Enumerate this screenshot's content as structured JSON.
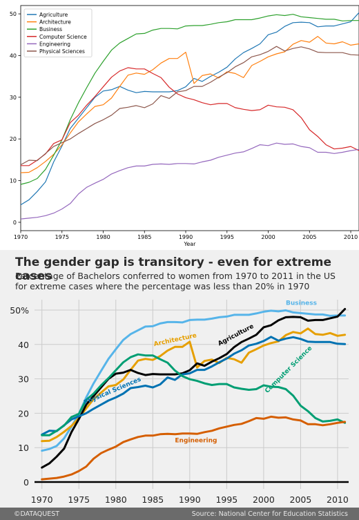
{
  "chart_data": [
    {
      "type": "line",
      "title": "",
      "xlabel": "Year",
      "ylabel": "",
      "xlim": [
        1970,
        2011
      ],
      "ylim": [
        -2,
        52
      ],
      "xticks": [
        1970,
        1975,
        1980,
        1985,
        1990,
        1995,
        2000,
        2005,
        2010
      ],
      "yticks": [
        0,
        10,
        20,
        30,
        40,
        50
      ],
      "grid": false,
      "legend_position": "top-left",
      "x": [
        1970,
        1971,
        1972,
        1973,
        1974,
        1975,
        1976,
        1977,
        1978,
        1979,
        1980,
        1981,
        1982,
        1983,
        1984,
        1985,
        1986,
        1987,
        1988,
        1989,
        1990,
        1991,
        1992,
        1993,
        1994,
        1995,
        1996,
        1997,
        1998,
        1999,
        2000,
        2001,
        2002,
        2003,
        2004,
        2005,
        2006,
        2007,
        2008,
        2009,
        2010,
        2011
      ],
      "series": [
        {
          "name": "Agriculture",
          "color": "#1f77b4",
          "values": [
            4.2,
            5.4,
            7.4,
            9.7,
            14.5,
            18.3,
            22.5,
            25.0,
            27.5,
            30.0,
            31.5,
            31.8,
            32.6,
            31.7,
            31.1,
            31.4,
            31.3,
            31.3,
            31.3,
            31.6,
            32.5,
            34.5,
            33.8,
            35.0,
            36.0,
            37.2,
            39.2,
            40.7,
            41.7,
            42.8,
            45.0,
            45.6,
            47.0,
            47.9,
            48.0,
            47.9,
            46.9,
            47.1,
            47.1,
            47.6,
            48.1,
            50.3
          ]
        },
        {
          "name": "Architecture",
          "color": "#ff7f0e",
          "values": [
            11.9,
            12.0,
            13.1,
            14.6,
            16.3,
            18.6,
            21.4,
            24.1,
            26.0,
            27.8,
            28.2,
            29.8,
            32.6,
            35.3,
            35.8,
            35.5,
            36.6,
            38.2,
            39.3,
            39.3,
            40.8,
            33.3,
            35.2,
            35.6,
            34.6,
            36.1,
            35.7,
            34.7,
            37.6,
            38.6,
            39.7,
            40.4,
            40.9,
            42.7,
            43.6,
            43.2,
            44.6,
            43.0,
            42.8,
            43.3,
            42.5,
            42.8
          ]
        },
        {
          "name": "Business",
          "color": "#2ca02c",
          "values": [
            9.1,
            9.6,
            10.5,
            12.7,
            16.1,
            19.8,
            24.6,
            28.7,
            32.3,
            35.8,
            38.6,
            41.3,
            43.0,
            44.1,
            45.2,
            45.3,
            46.1,
            46.5,
            46.5,
            46.4,
            47.1,
            47.2,
            47.2,
            47.5,
            47.9,
            48.1,
            48.6,
            48.6,
            48.6,
            49.0,
            49.5,
            49.8,
            49.6,
            49.9,
            49.3,
            49.1,
            48.9,
            48.7,
            48.7,
            48.3,
            48.4,
            48.4
          ]
        },
        {
          "name": "Computer Science",
          "color": "#d62728",
          "values": [
            13.6,
            13.6,
            14.9,
            16.4,
            18.9,
            19.8,
            23.9,
            25.7,
            28.1,
            30.2,
            32.5,
            34.8,
            36.3,
            37.1,
            36.8,
            36.8,
            35.7,
            34.7,
            32.4,
            30.8,
            29.9,
            29.4,
            28.7,
            28.2,
            28.5,
            28.5,
            27.5,
            27.1,
            26.8,
            27.0,
            28.1,
            27.7,
            27.6,
            27.0,
            25.1,
            22.2,
            20.6,
            18.6,
            17.6,
            17.8,
            18.2,
            17.2
          ]
        },
        {
          "name": "Engineering",
          "color": "#9467bd",
          "values": [
            0.8,
            1.0,
            1.2,
            1.6,
            2.2,
            3.2,
            4.5,
            6.8,
            8.4,
            9.4,
            10.3,
            11.6,
            12.4,
            13.1,
            13.5,
            13.5,
            13.9,
            14.0,
            13.9,
            14.1,
            14.1,
            14.0,
            14.5,
            14.9,
            15.6,
            16.1,
            16.6,
            16.9,
            17.7,
            18.6,
            18.4,
            19.0,
            18.7,
            18.8,
            18.2,
            17.9,
            16.8,
            16.8,
            16.5,
            16.8,
            17.2,
            17.5
          ]
        },
        {
          "name": "Physical Sciences",
          "color": "#8c564b",
          "values": [
            13.8,
            14.9,
            14.8,
            16.5,
            18.2,
            19.1,
            20.0,
            21.3,
            22.5,
            23.7,
            24.6,
            25.7,
            27.3,
            27.6,
            28.0,
            27.5,
            28.4,
            30.4,
            29.7,
            31.3,
            31.6,
            32.6,
            32.6,
            33.6,
            34.8,
            35.9,
            37.3,
            38.3,
            39.7,
            40.2,
            41.0,
            42.2,
            41.1,
            41.7,
            42.1,
            41.6,
            40.8,
            40.7,
            40.7,
            40.7,
            40.2,
            40.1
          ]
        }
      ]
    },
    {
      "type": "line",
      "title": "The gender gap is transitory - even for extreme cases",
      "subtitle": "Percentage of Bachelors conferred to women from 1970 to 2011 in the US for extreme cases where the percentage was less than 20% in 1970",
      "xlabel": "",
      "ylabel": "",
      "xlim": [
        1969,
        2011.5
      ],
      "ylim": [
        -2,
        53
      ],
      "xticks": [
        1970,
        1975,
        1980,
        1985,
        1990,
        1995,
        2000,
        2005,
        2010
      ],
      "yticks": [
        0,
        10,
        20,
        30,
        40,
        50
      ],
      "ytick_labels": [
        "0",
        "10",
        "20",
        "30",
        "40",
        "50%"
      ],
      "grid": true,
      "background": "#f0f0f0",
      "x": [
        1970,
        1971,
        1972,
        1973,
        1974,
        1975,
        1976,
        1977,
        1978,
        1979,
        1980,
        1981,
        1982,
        1983,
        1984,
        1985,
        1986,
        1987,
        1988,
        1989,
        1990,
        1991,
        1992,
        1993,
        1994,
        1995,
        1996,
        1997,
        1998,
        1999,
        2000,
        2001,
        2002,
        2003,
        2004,
        2005,
        2006,
        2007,
        2008,
        2009,
        2010,
        2011
      ],
      "series": [
        {
          "name": "Business",
          "color": "#56b4e9",
          "values": [
            9.1,
            9.6,
            10.5,
            12.7,
            16.1,
            19.8,
            24.6,
            28.7,
            32.3,
            35.8,
            38.6,
            41.3,
            43.0,
            44.1,
            45.2,
            45.3,
            46.1,
            46.5,
            46.5,
            46.4,
            47.1,
            47.2,
            47.2,
            47.5,
            47.9,
            48.1,
            48.6,
            48.6,
            48.6,
            49.0,
            49.5,
            49.8,
            49.6,
            49.9,
            49.3,
            49.1,
            48.9,
            48.7,
            48.7,
            48.3,
            48.4,
            48.4
          ]
        },
        {
          "name": "Architecture",
          "color": "#e69f00",
          "values": [
            11.9,
            12.0,
            13.1,
            14.6,
            16.3,
            18.6,
            21.4,
            24.1,
            26.0,
            27.8,
            28.2,
            29.8,
            32.6,
            35.3,
            35.8,
            35.5,
            36.6,
            38.2,
            39.3,
            39.3,
            40.8,
            33.3,
            35.2,
            35.6,
            34.6,
            36.1,
            35.7,
            34.7,
            37.6,
            38.6,
            39.7,
            40.4,
            40.9,
            42.7,
            43.6,
            43.2,
            44.6,
            43.0,
            42.8,
            43.3,
            42.5,
            42.8
          ]
        },
        {
          "name": "Agriculture",
          "color": "#000000",
          "values": [
            4.2,
            5.4,
            7.4,
            9.7,
            14.5,
            18.3,
            22.5,
            25.0,
            27.5,
            30.0,
            31.5,
            31.8,
            32.6,
            31.7,
            31.1,
            31.4,
            31.3,
            31.3,
            31.3,
            31.6,
            32.5,
            34.5,
            33.8,
            35.0,
            36.0,
            37.2,
            39.2,
            40.7,
            41.7,
            42.8,
            45.0,
            45.6,
            47.0,
            47.9,
            48.0,
            47.9,
            46.9,
            47.1,
            47.1,
            47.6,
            48.1,
            50.3
          ]
        },
        {
          "name": "Physical Sciences",
          "color": "#0072b2",
          "values": [
            13.8,
            14.9,
            14.8,
            16.5,
            18.2,
            19.1,
            20.0,
            21.3,
            22.5,
            23.7,
            24.6,
            25.7,
            27.3,
            27.6,
            28.0,
            27.5,
            28.4,
            30.4,
            29.7,
            31.3,
            31.6,
            32.6,
            32.6,
            33.6,
            34.8,
            35.9,
            37.3,
            38.3,
            39.7,
            40.2,
            41.0,
            42.2,
            41.1,
            41.7,
            42.1,
            41.6,
            40.8,
            40.7,
            40.7,
            40.7,
            40.2,
            40.1
          ]
        },
        {
          "name": "Computer Science",
          "color": "#009e73",
          "values": [
            13.6,
            13.6,
            14.9,
            16.4,
            18.9,
            19.8,
            23.9,
            25.7,
            28.1,
            30.2,
            32.5,
            34.8,
            36.3,
            37.1,
            36.8,
            36.8,
            35.7,
            34.7,
            32.4,
            30.8,
            29.9,
            29.4,
            28.7,
            28.2,
            28.5,
            28.5,
            27.5,
            27.1,
            26.8,
            27.0,
            28.1,
            27.7,
            27.6,
            27.0,
            25.1,
            22.2,
            20.6,
            18.6,
            17.6,
            17.8,
            18.2,
            17.2
          ]
        },
        {
          "name": "Engineering",
          "color": "#d55e00",
          "values": [
            0.8,
            1.0,
            1.2,
            1.6,
            2.2,
            3.2,
            4.5,
            6.8,
            8.4,
            9.4,
            10.3,
            11.6,
            12.4,
            13.1,
            13.5,
            13.5,
            13.9,
            14.0,
            13.9,
            14.1,
            14.1,
            14.0,
            14.5,
            14.9,
            15.6,
            16.1,
            16.6,
            16.9,
            17.7,
            18.6,
            18.4,
            19.0,
            18.7,
            18.8,
            18.2,
            17.9,
            16.8,
            16.8,
            16.5,
            16.8,
            17.2,
            17.5
          ]
        }
      ],
      "annotations": [
        {
          "text": "Business",
          "color": "#56b4e9",
          "x": 2003.0,
          "y": 51.5,
          "rotation": 0
        },
        {
          "text": "Architecture",
          "color": "#e69f00",
          "x": 1985.2,
          "y": 39.5,
          "rotation": -12
        },
        {
          "text": "Agriculture",
          "color": "#000000",
          "x": 1994.0,
          "y": 39.6,
          "rotation": -28
        },
        {
          "text": "Computer Science",
          "color": "#009e73",
          "x": 2000.5,
          "y": 25.8,
          "rotation": -45
        },
        {
          "text": "Physical Sciences",
          "color": "#0072b2",
          "x": 1975.8,
          "y": 22.5,
          "rotation": -23
        },
        {
          "text": "Engineering",
          "color": "#d55e00",
          "x": 1988.0,
          "y": 11.5,
          "rotation": 0
        }
      ]
    }
  ],
  "bottom": {
    "footer_left": "©DATAQUEST",
    "footer_right": "Source: National Center for Education Statistics"
  }
}
